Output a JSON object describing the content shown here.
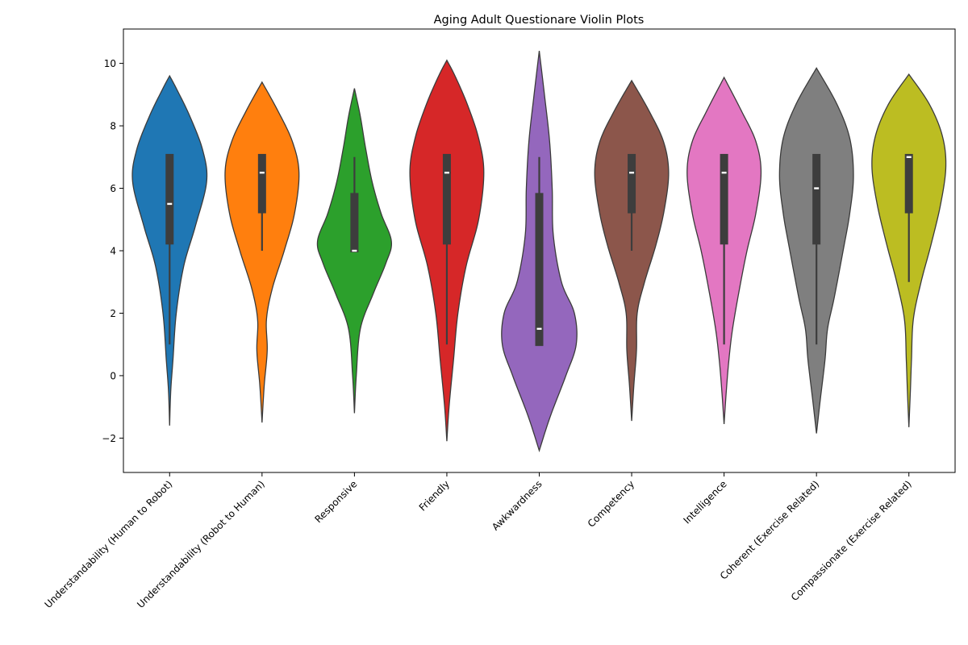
{
  "chart_data": {
    "type": "violin",
    "title": "Aging Adult Questionare Violin Plots",
    "xlabel": "",
    "ylabel": "",
    "ylim": [
      -3.1,
      11.1
    ],
    "yticks": [
      -2,
      0,
      2,
      4,
      6,
      8,
      10
    ],
    "ytick_labels": [
      "−2",
      "0",
      "2",
      "4",
      "6",
      "8",
      "10"
    ],
    "grid": false,
    "categories": [
      "Understandability (Human to Robot)",
      "Understandability (Robot to Human)",
      "Responsive",
      "Friendly",
      "Awkwardness",
      "Competency",
      "Intelligence",
      "Coherent (Exercise Related)",
      "Compassionate (Exercise Related)"
    ],
    "series": [
      {
        "color": "#1f77b4",
        "whisker": [
          1,
          7
        ],
        "iqr": [
          4.2,
          7.1
        ],
        "median": 5.5,
        "kde_range": [
          -1.6,
          9.6
        ],
        "density": [
          [
            -1.6,
            0
          ],
          [
            -0.5,
            0.03
          ],
          [
            0.5,
            0.09
          ],
          [
            2,
            0.18
          ],
          [
            3.5,
            0.38
          ],
          [
            4.8,
            0.7
          ],
          [
            6.2,
            1.0
          ],
          [
            7.2,
            0.9
          ],
          [
            8.3,
            0.55
          ],
          [
            9.2,
            0.18
          ],
          [
            9.6,
            0
          ]
        ]
      },
      {
        "color": "#ff7f0e",
        "whisker": [
          4,
          7
        ],
        "iqr": [
          5.2,
          7.1
        ],
        "median": 6.5,
        "kde_range": [
          -1.5,
          9.4
        ],
        "density": [
          [
            -1.5,
            0
          ],
          [
            -0.3,
            0.06
          ],
          [
            0.8,
            0.14
          ],
          [
            1.8,
            0.12
          ],
          [
            2.8,
            0.28
          ],
          [
            4,
            0.6
          ],
          [
            5.2,
            0.88
          ],
          [
            6.5,
            1.0
          ],
          [
            7.5,
            0.82
          ],
          [
            8.5,
            0.42
          ],
          [
            9.4,
            0
          ]
        ]
      },
      {
        "color": "#2ca02c",
        "whisker": [
          4,
          7
        ],
        "iqr": [
          3.95,
          5.85
        ],
        "median": 4,
        "kde_range": [
          -1.2,
          9.2
        ],
        "density": [
          [
            -1.2,
            0
          ],
          [
            0,
            0.05
          ],
          [
            1.5,
            0.16
          ],
          [
            2.6,
            0.5
          ],
          [
            3.6,
            0.85
          ],
          [
            4.3,
            1.0
          ],
          [
            5.2,
            0.72
          ],
          [
            6.2,
            0.48
          ],
          [
            7.3,
            0.3
          ],
          [
            8.3,
            0.16
          ],
          [
            9.2,
            0
          ]
        ]
      },
      {
        "color": "#d62728",
        "whisker": [
          1,
          7
        ],
        "iqr": [
          4.2,
          7.1
        ],
        "median": 6.5,
        "kde_range": [
          -2.1,
          10.1
        ],
        "density": [
          [
            -2.1,
            0
          ],
          [
            -1,
            0.06
          ],
          [
            0.5,
            0.18
          ],
          [
            2,
            0.3
          ],
          [
            3.5,
            0.52
          ],
          [
            5,
            0.86
          ],
          [
            6.5,
            1.0
          ],
          [
            7.6,
            0.86
          ],
          [
            8.7,
            0.55
          ],
          [
            9.6,
            0.22
          ],
          [
            10.1,
            0
          ]
        ]
      },
      {
        "color": "#9467bd",
        "whisker": [
          1,
          7
        ],
        "iqr": [
          0.95,
          5.85
        ],
        "median": 1.5,
        "kde_range": [
          -2.4,
          10.4
        ],
        "density": [
          [
            -2.4,
            0
          ],
          [
            -1.3,
            0.3
          ],
          [
            0,
            0.72
          ],
          [
            1,
            1.0
          ],
          [
            2,
            0.95
          ],
          [
            3,
            0.6
          ],
          [
            4.5,
            0.38
          ],
          [
            6,
            0.35
          ],
          [
            7.5,
            0.28
          ],
          [
            9,
            0.14
          ],
          [
            10.4,
            0
          ]
        ]
      },
      {
        "color": "#8c564b",
        "whisker": [
          4,
          7
        ],
        "iqr": [
          5.2,
          7.1
        ],
        "median": 6.5,
        "kde_range": [
          -1.45,
          9.45
        ],
        "density": [
          [
            -1.45,
            0
          ],
          [
            -0.3,
            0.06
          ],
          [
            0.8,
            0.13
          ],
          [
            2,
            0.15
          ],
          [
            3,
            0.35
          ],
          [
            4.2,
            0.66
          ],
          [
            5.3,
            0.88
          ],
          [
            6.5,
            1.0
          ],
          [
            7.5,
            0.86
          ],
          [
            8.5,
            0.46
          ],
          [
            9.45,
            0
          ]
        ]
      },
      {
        "color": "#e377c2",
        "whisker": [
          1,
          7
        ],
        "iqr": [
          4.2,
          7.1
        ],
        "median": 6.5,
        "kde_range": [
          -1.55,
          9.55
        ],
        "density": [
          [
            -1.55,
            0
          ],
          [
            -0.5,
            0.06
          ],
          [
            0.5,
            0.13
          ],
          [
            1.5,
            0.23
          ],
          [
            2.8,
            0.42
          ],
          [
            4,
            0.62
          ],
          [
            5.2,
            0.86
          ],
          [
            6.5,
            1.0
          ],
          [
            7.5,
            0.86
          ],
          [
            8.5,
            0.46
          ],
          [
            9.55,
            0
          ]
        ]
      },
      {
        "color": "#7f7f7f",
        "whisker": [
          1,
          7
        ],
        "iqr": [
          4.2,
          7.1
        ],
        "median": 6,
        "kde_range": [
          -1.85,
          9.85
        ],
        "density": [
          [
            -1.85,
            0
          ],
          [
            -0.8,
            0.1
          ],
          [
            0.5,
            0.23
          ],
          [
            1.5,
            0.3
          ],
          [
            2.5,
            0.48
          ],
          [
            4,
            0.72
          ],
          [
            5.2,
            0.9
          ],
          [
            6.4,
            1.0
          ],
          [
            7.6,
            0.9
          ],
          [
            8.7,
            0.55
          ],
          [
            9.85,
            0
          ]
        ]
      },
      {
        "color": "#bcbd22",
        "whisker": [
          3,
          7
        ],
        "iqr": [
          5.2,
          7.1
        ],
        "median": 7,
        "kde_range": [
          -1.65,
          9.65
        ],
        "density": [
          [
            -1.65,
            0
          ],
          [
            -0.5,
            0.04
          ],
          [
            0.5,
            0.07
          ],
          [
            1.8,
            0.12
          ],
          [
            3,
            0.33
          ],
          [
            4.2,
            0.6
          ],
          [
            5.5,
            0.86
          ],
          [
            6.7,
            1.0
          ],
          [
            7.7,
            0.9
          ],
          [
            8.7,
            0.55
          ],
          [
            9.65,
            0
          ]
        ]
      }
    ]
  }
}
